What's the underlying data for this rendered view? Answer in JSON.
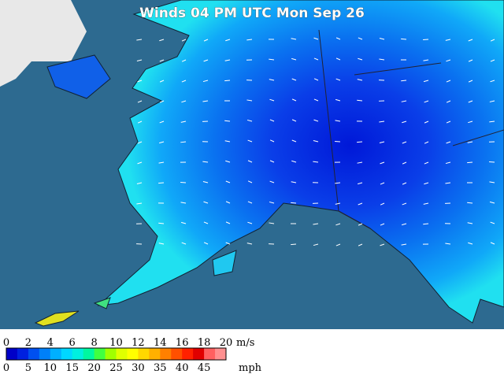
{
  "title": "Winds 04 PM UTC Mon Sep 26",
  "legend": {
    "ms_ticks": [
      "0",
      "2",
      "4",
      "6",
      "8",
      "10",
      "12",
      "14",
      "16",
      "18",
      "20"
    ],
    "ms_unit": "m/s",
    "mph_ticks": [
      "0",
      "5",
      "10",
      "15",
      "20",
      "25",
      "30",
      "35",
      "40",
      "45"
    ],
    "mph_unit": "mph",
    "colors": [
      "#0000c8",
      "#0020e0",
      "#0050f0",
      "#0080f8",
      "#00b0ff",
      "#00d8ff",
      "#00f0e0",
      "#00f8a0",
      "#40ff40",
      "#a0ff00",
      "#e0ff00",
      "#ffff00",
      "#ffd800",
      "#ffb000",
      "#ff8000",
      "#ff5000",
      "#ff2000",
      "#e00000",
      "#ff6060",
      "#ff9090"
    ]
  }
}
